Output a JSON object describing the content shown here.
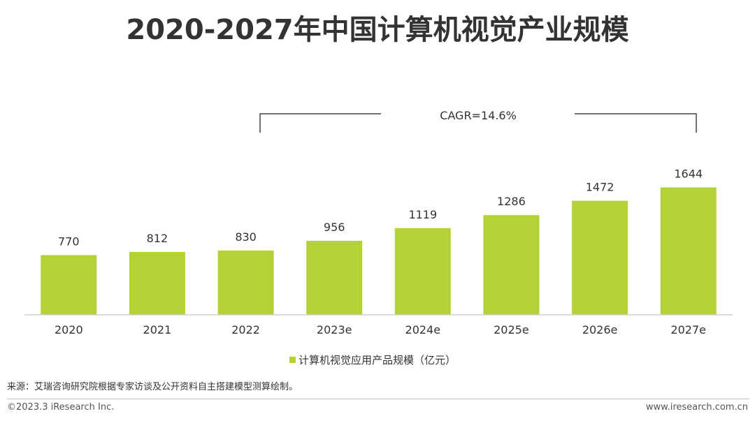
{
  "chart_data": {
    "type": "bar",
    "title": "2020-2027年中国计算机视觉产业规模",
    "categories": [
      "2020",
      "2021",
      "2022",
      "2023e",
      "2024e",
      "2025e",
      "2026e",
      "2027e"
    ],
    "values": [
      770,
      812,
      830,
      956,
      1119,
      1286,
      1472,
      1644
    ],
    "series": [
      {
        "name": "计算机视觉应用产品规模（亿元）",
        "values": [
          770,
          812,
          830,
          956,
          1119,
          1286,
          1472,
          1644
        ]
      }
    ],
    "ylim": [
      0,
      1800
    ],
    "annotation": "CAGR=14.6%",
    "legend_position": "bottom-center",
    "grid": false,
    "xlabel": "",
    "ylabel": ""
  },
  "colors": {
    "bar": "#b2d235",
    "text": "#333333",
    "axis": "#d0d0d0",
    "bracket": "#444444"
  },
  "footer": {
    "source": "来源：艾瑞咨询研究院根据专家访谈及公开资料自主搭建模型测算绘制。",
    "copyright": "©2023.3 iResearch Inc.",
    "url": "www.iresearch.com.cn"
  }
}
